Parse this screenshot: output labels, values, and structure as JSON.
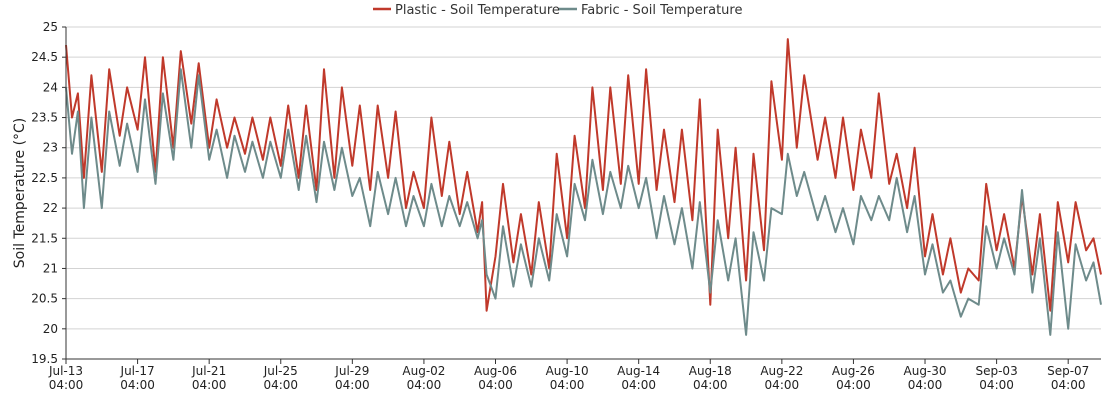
{
  "chart_data": {
    "type": "line",
    "title": "",
    "xlabel": "",
    "ylabel": "Soil Temperature (°C)",
    "ylim": [
      19.5,
      25
    ],
    "y_ticks": [
      "19.5",
      "20",
      "20.5",
      "21",
      "21.5",
      "22",
      "22.5",
      "23",
      "23.5",
      "24",
      "24.5",
      "25"
    ],
    "x_range": [
      "2023-07-13T04:00",
      "2023-09-09T00:00"
    ],
    "x_ticks": [
      {
        "date": "2023-07-13T04:00",
        "line1": "Jul-13",
        "line2": "04:00"
      },
      {
        "date": "2023-07-17T04:00",
        "line1": "Jul-17",
        "line2": "04:00"
      },
      {
        "date": "2023-07-21T04:00",
        "line1": "Jul-21",
        "line2": "04:00"
      },
      {
        "date": "2023-07-25T04:00",
        "line1": "Jul-25",
        "line2": "04:00"
      },
      {
        "date": "2023-07-29T04:00",
        "line1": "Jul-29",
        "line2": "04:00"
      },
      {
        "date": "2023-08-02T04:00",
        "line1": "Aug-02",
        "line2": "04:00"
      },
      {
        "date": "2023-08-06T04:00",
        "line1": "Aug-06",
        "line2": "04:00"
      },
      {
        "date": "2023-08-10T04:00",
        "line1": "Aug-10",
        "line2": "04:00"
      },
      {
        "date": "2023-08-14T04:00",
        "line1": "Aug-14",
        "line2": "04:00"
      },
      {
        "date": "2023-08-18T04:00",
        "line1": "Aug-18",
        "line2": "04:00"
      },
      {
        "date": "2023-08-22T04:00",
        "line1": "Aug-22",
        "line2": "04:00"
      },
      {
        "date": "2023-08-26T04:00",
        "line1": "Aug-26",
        "line2": "04:00"
      },
      {
        "date": "2023-08-30T04:00",
        "line1": "Aug-30",
        "line2": "04:00"
      },
      {
        "date": "2023-09-03T04:00",
        "line1": "Sep-03",
        "line2": "04:00"
      },
      {
        "date": "2023-09-07T04:00",
        "line1": "Sep-07",
        "line2": "04:00"
      }
    ],
    "grid": true,
    "legend": {
      "placement": "top-center"
    },
    "series": [
      {
        "name": "Plastic - Soil Temperature",
        "color": "#c0392b",
        "points": [
          [
            "2023-07-13T04:00",
            24.7
          ],
          [
            "2023-07-13T12:00",
            23.5
          ],
          [
            "2023-07-13T20:00",
            23.9
          ],
          [
            "2023-07-14T04:00",
            22.5
          ],
          [
            "2023-07-14T14:00",
            24.2
          ],
          [
            "2023-07-15T04:00",
            22.6
          ],
          [
            "2023-07-15T14:00",
            24.3
          ],
          [
            "2023-07-16T04:00",
            23.2
          ],
          [
            "2023-07-16T14:00",
            24.0
          ],
          [
            "2023-07-17T04:00",
            23.3
          ],
          [
            "2023-07-17T14:00",
            24.5
          ],
          [
            "2023-07-18T04:00",
            22.6
          ],
          [
            "2023-07-18T14:00",
            24.5
          ],
          [
            "2023-07-19T04:00",
            23.0
          ],
          [
            "2023-07-19T14:00",
            24.6
          ],
          [
            "2023-07-20T04:00",
            23.4
          ],
          [
            "2023-07-20T14:00",
            24.4
          ],
          [
            "2023-07-21T04:00",
            23.0
          ],
          [
            "2023-07-21T14:00",
            23.8
          ],
          [
            "2023-07-22T04:00",
            23.0
          ],
          [
            "2023-07-22T14:00",
            23.5
          ],
          [
            "2023-07-23T04:00",
            22.9
          ],
          [
            "2023-07-23T14:00",
            23.5
          ],
          [
            "2023-07-24T04:00",
            22.8
          ],
          [
            "2023-07-24T14:00",
            23.5
          ],
          [
            "2023-07-25T04:00",
            22.7
          ],
          [
            "2023-07-25T14:00",
            23.7
          ],
          [
            "2023-07-26T04:00",
            22.5
          ],
          [
            "2023-07-26T14:00",
            23.7
          ],
          [
            "2023-07-27T04:00",
            22.3
          ],
          [
            "2023-07-27T14:00",
            24.3
          ],
          [
            "2023-07-28T04:00",
            22.5
          ],
          [
            "2023-07-28T14:00",
            24.0
          ],
          [
            "2023-07-29T04:00",
            22.7
          ],
          [
            "2023-07-29T14:00",
            23.7
          ],
          [
            "2023-07-30T04:00",
            22.3
          ],
          [
            "2023-07-30T14:00",
            23.7
          ],
          [
            "2023-07-31T04:00",
            22.5
          ],
          [
            "2023-07-31T14:00",
            23.6
          ],
          [
            "2023-08-01T04:00",
            22.0
          ],
          [
            "2023-08-01T14:00",
            22.6
          ],
          [
            "2023-08-02T04:00",
            22.0
          ],
          [
            "2023-08-02T14:00",
            23.5
          ],
          [
            "2023-08-03T04:00",
            22.2
          ],
          [
            "2023-08-03T14:00",
            23.1
          ],
          [
            "2023-08-04T04:00",
            21.9
          ],
          [
            "2023-08-04T14:00",
            22.6
          ],
          [
            "2023-08-05T04:00",
            21.6
          ],
          [
            "2023-08-05T10:00",
            22.1
          ],
          [
            "2023-08-05T16:00",
            20.3
          ],
          [
            "2023-08-06T04:00",
            21.2
          ],
          [
            "2023-08-06T14:00",
            22.4
          ],
          [
            "2023-08-07T04:00",
            21.1
          ],
          [
            "2023-08-07T14:00",
            21.9
          ],
          [
            "2023-08-08T04:00",
            20.9
          ],
          [
            "2023-08-08T14:00",
            22.1
          ],
          [
            "2023-08-09T04:00",
            21.0
          ],
          [
            "2023-08-09T14:00",
            22.9
          ],
          [
            "2023-08-10T04:00",
            21.5
          ],
          [
            "2023-08-10T14:00",
            23.2
          ],
          [
            "2023-08-11T04:00",
            22.0
          ],
          [
            "2023-08-11T14:00",
            24.0
          ],
          [
            "2023-08-12T04:00",
            22.3
          ],
          [
            "2023-08-12T14:00",
            24.0
          ],
          [
            "2023-08-13T04:00",
            22.4
          ],
          [
            "2023-08-13T14:00",
            24.2
          ],
          [
            "2023-08-14T04:00",
            22.4
          ],
          [
            "2023-08-14T14:00",
            24.3
          ],
          [
            "2023-08-15T04:00",
            22.3
          ],
          [
            "2023-08-15T14:00",
            23.3
          ],
          [
            "2023-08-16T04:00",
            22.1
          ],
          [
            "2023-08-16T14:00",
            23.3
          ],
          [
            "2023-08-17T04:00",
            21.8
          ],
          [
            "2023-08-17T14:00",
            23.8
          ],
          [
            "2023-08-18T04:00",
            20.4
          ],
          [
            "2023-08-18T14:00",
            23.3
          ],
          [
            "2023-08-19T04:00",
            21.5
          ],
          [
            "2023-08-19T14:00",
            23.0
          ],
          [
            "2023-08-20T04:00",
            20.8
          ],
          [
            "2023-08-20T14:00",
            22.9
          ],
          [
            "2023-08-21T04:00",
            21.3
          ],
          [
            "2023-08-21T14:00",
            24.1
          ],
          [
            "2023-08-22T04:00",
            22.8
          ],
          [
            "2023-08-22T12:00",
            24.8
          ],
          [
            "2023-08-23T00:00",
            23.0
          ],
          [
            "2023-08-23T10:00",
            24.2
          ],
          [
            "2023-08-24T04:00",
            22.8
          ],
          [
            "2023-08-24T14:00",
            23.5
          ],
          [
            "2023-08-25T04:00",
            22.5
          ],
          [
            "2023-08-25T14:00",
            23.5
          ],
          [
            "2023-08-26T04:00",
            22.3
          ],
          [
            "2023-08-26T14:00",
            23.3
          ],
          [
            "2023-08-27T04:00",
            22.5
          ],
          [
            "2023-08-27T14:00",
            23.9
          ],
          [
            "2023-08-28T04:00",
            22.4
          ],
          [
            "2023-08-28T14:00",
            22.9
          ],
          [
            "2023-08-29T04:00",
            22.0
          ],
          [
            "2023-08-29T14:00",
            23.0
          ],
          [
            "2023-08-30T04:00",
            21.2
          ],
          [
            "2023-08-30T14:00",
            21.9
          ],
          [
            "2023-08-31T04:00",
            20.9
          ],
          [
            "2023-08-31T14:00",
            21.5
          ],
          [
            "2023-09-01T04:00",
            20.6
          ],
          [
            "2023-09-01T14:00",
            21.0
          ],
          [
            "2023-09-02T04:00",
            20.8
          ],
          [
            "2023-09-02T14:00",
            22.4
          ],
          [
            "2023-09-03T04:00",
            21.3
          ],
          [
            "2023-09-03T14:00",
            21.9
          ],
          [
            "2023-09-04T04:00",
            21.0
          ],
          [
            "2023-09-04T14:00",
            22.2
          ],
          [
            "2023-09-05T04:00",
            20.9
          ],
          [
            "2023-09-05T14:00",
            21.9
          ],
          [
            "2023-09-06T04:00",
            20.3
          ],
          [
            "2023-09-06T14:00",
            22.1
          ],
          [
            "2023-09-07T04:00",
            21.1
          ],
          [
            "2023-09-07T14:00",
            22.1
          ],
          [
            "2023-09-08T04:00",
            21.3
          ],
          [
            "2023-09-08T14:00",
            21.5
          ],
          [
            "2023-09-09T00:00",
            20.9
          ]
        ]
      },
      {
        "name": "Fabric - Soil Temperature",
        "color": "#6e8b8b",
        "points": [
          [
            "2023-07-13T04:00",
            24.0
          ],
          [
            "2023-07-13T12:00",
            22.9
          ],
          [
            "2023-07-13T20:00",
            23.6
          ],
          [
            "2023-07-14T04:00",
            22.0
          ],
          [
            "2023-07-14T14:00",
            23.5
          ],
          [
            "2023-07-15T04:00",
            22.0
          ],
          [
            "2023-07-15T14:00",
            23.6
          ],
          [
            "2023-07-16T04:00",
            22.7
          ],
          [
            "2023-07-16T14:00",
            23.4
          ],
          [
            "2023-07-17T04:00",
            22.6
          ],
          [
            "2023-07-17T14:00",
            23.8
          ],
          [
            "2023-07-18T04:00",
            22.4
          ],
          [
            "2023-07-18T14:00",
            23.9
          ],
          [
            "2023-07-19T04:00",
            22.8
          ],
          [
            "2023-07-19T14:00",
            24.3
          ],
          [
            "2023-07-20T04:00",
            23.0
          ],
          [
            "2023-07-20T14:00",
            24.2
          ],
          [
            "2023-07-21T04:00",
            22.8
          ],
          [
            "2023-07-21T14:00",
            23.3
          ],
          [
            "2023-07-22T04:00",
            22.5
          ],
          [
            "2023-07-22T14:00",
            23.2
          ],
          [
            "2023-07-23T04:00",
            22.6
          ],
          [
            "2023-07-23T14:00",
            23.1
          ],
          [
            "2023-07-24T04:00",
            22.5
          ],
          [
            "2023-07-24T14:00",
            23.1
          ],
          [
            "2023-07-25T04:00",
            22.5
          ],
          [
            "2023-07-25T14:00",
            23.3
          ],
          [
            "2023-07-26T04:00",
            22.3
          ],
          [
            "2023-07-26T14:00",
            23.2
          ],
          [
            "2023-07-27T04:00",
            22.1
          ],
          [
            "2023-07-27T14:00",
            23.1
          ],
          [
            "2023-07-28T04:00",
            22.3
          ],
          [
            "2023-07-28T14:00",
            23.0
          ],
          [
            "2023-07-29T04:00",
            22.2
          ],
          [
            "2023-07-29T14:00",
            22.5
          ],
          [
            "2023-07-30T04:00",
            21.7
          ],
          [
            "2023-07-30T14:00",
            22.6
          ],
          [
            "2023-07-31T04:00",
            21.9
          ],
          [
            "2023-07-31T14:00",
            22.5
          ],
          [
            "2023-08-01T04:00",
            21.7
          ],
          [
            "2023-08-01T14:00",
            22.2
          ],
          [
            "2023-08-02T04:00",
            21.7
          ],
          [
            "2023-08-02T14:00",
            22.4
          ],
          [
            "2023-08-03T04:00",
            21.7
          ],
          [
            "2023-08-03T14:00",
            22.2
          ],
          [
            "2023-08-04T04:00",
            21.7
          ],
          [
            "2023-08-04T14:00",
            22.1
          ],
          [
            "2023-08-05T04:00",
            21.5
          ],
          [
            "2023-08-05T10:00",
            21.8
          ],
          [
            "2023-08-05T16:00",
            20.9
          ],
          [
            "2023-08-06T04:00",
            20.5
          ],
          [
            "2023-08-06T14:00",
            21.7
          ],
          [
            "2023-08-07T04:00",
            20.7
          ],
          [
            "2023-08-07T14:00",
            21.4
          ],
          [
            "2023-08-08T04:00",
            20.7
          ],
          [
            "2023-08-08T14:00",
            21.5
          ],
          [
            "2023-08-09T04:00",
            20.8
          ],
          [
            "2023-08-09T14:00",
            21.9
          ],
          [
            "2023-08-10T04:00",
            21.2
          ],
          [
            "2023-08-10T14:00",
            22.4
          ],
          [
            "2023-08-11T04:00",
            21.8
          ],
          [
            "2023-08-11T14:00",
            22.8
          ],
          [
            "2023-08-12T04:00",
            21.9
          ],
          [
            "2023-08-12T14:00",
            22.6
          ],
          [
            "2023-08-13T04:00",
            22.0
          ],
          [
            "2023-08-13T14:00",
            22.7
          ],
          [
            "2023-08-14T04:00",
            22.0
          ],
          [
            "2023-08-14T14:00",
            22.5
          ],
          [
            "2023-08-15T04:00",
            21.5
          ],
          [
            "2023-08-15T14:00",
            22.2
          ],
          [
            "2023-08-16T04:00",
            21.4
          ],
          [
            "2023-08-16T14:00",
            22.0
          ],
          [
            "2023-08-17T04:00",
            21.0
          ],
          [
            "2023-08-17T14:00",
            22.1
          ],
          [
            "2023-08-18T04:00",
            20.6
          ],
          [
            "2023-08-18T14:00",
            21.8
          ],
          [
            "2023-08-19T04:00",
            20.8
          ],
          [
            "2023-08-19T14:00",
            21.5
          ],
          [
            "2023-08-20T04:00",
            19.9
          ],
          [
            "2023-08-20T14:00",
            21.6
          ],
          [
            "2023-08-21T04:00",
            20.8
          ],
          [
            "2023-08-21T14:00",
            22.0
          ],
          [
            "2023-08-22T04:00",
            21.9
          ],
          [
            "2023-08-22T12:00",
            22.9
          ],
          [
            "2023-08-23T00:00",
            22.2
          ],
          [
            "2023-08-23T10:00",
            22.6
          ],
          [
            "2023-08-24T04:00",
            21.8
          ],
          [
            "2023-08-24T14:00",
            22.2
          ],
          [
            "2023-08-25T04:00",
            21.6
          ],
          [
            "2023-08-25T14:00",
            22.0
          ],
          [
            "2023-08-26T04:00",
            21.4
          ],
          [
            "2023-08-26T14:00",
            22.2
          ],
          [
            "2023-08-27T04:00",
            21.8
          ],
          [
            "2023-08-27T14:00",
            22.2
          ],
          [
            "2023-08-28T04:00",
            21.8
          ],
          [
            "2023-08-28T14:00",
            22.5
          ],
          [
            "2023-08-29T04:00",
            21.6
          ],
          [
            "2023-08-29T14:00",
            22.2
          ],
          [
            "2023-08-30T04:00",
            20.9
          ],
          [
            "2023-08-30T14:00",
            21.4
          ],
          [
            "2023-08-31T04:00",
            20.6
          ],
          [
            "2023-08-31T14:00",
            20.8
          ],
          [
            "2023-09-01T04:00",
            20.2
          ],
          [
            "2023-09-01T14:00",
            20.5
          ],
          [
            "2023-09-02T04:00",
            20.4
          ],
          [
            "2023-09-02T14:00",
            21.7
          ],
          [
            "2023-09-03T04:00",
            21.0
          ],
          [
            "2023-09-03T14:00",
            21.5
          ],
          [
            "2023-09-04T04:00",
            20.9
          ],
          [
            "2023-09-04T14:00",
            22.3
          ],
          [
            "2023-09-05T04:00",
            20.6
          ],
          [
            "2023-09-05T14:00",
            21.5
          ],
          [
            "2023-09-06T04:00",
            19.9
          ],
          [
            "2023-09-06T14:00",
            21.6
          ],
          [
            "2023-09-07T04:00",
            20.0
          ],
          [
            "2023-09-07T14:00",
            21.4
          ],
          [
            "2023-09-08T04:00",
            20.8
          ],
          [
            "2023-09-08T14:00",
            21.1
          ],
          [
            "2023-09-09T00:00",
            20.4
          ]
        ]
      }
    ]
  }
}
